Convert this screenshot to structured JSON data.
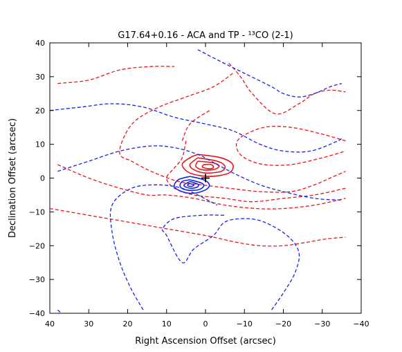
{
  "chart_data": {
    "type": "line",
    "title": "G17.64+0.16 - ACA and TP -  ¹³CO (2-1)",
    "xlabel": "Right Ascension Offset (arcsec)",
    "ylabel": "Declination Offset (arcsec)",
    "xlim": [
      40,
      -40
    ],
    "ylim": [
      -40,
      40
    ],
    "x_reversed": true,
    "grid": false,
    "legend": "none",
    "xticks": [
      {
        "value": 40,
        "label": "40"
      },
      {
        "value": 30,
        "label": "30"
      },
      {
        "value": 20,
        "label": "20"
      },
      {
        "value": 10,
        "label": "10"
      },
      {
        "value": 0,
        "label": "0"
      },
      {
        "value": -10,
        "label": "−10"
      },
      {
        "value": -20,
        "label": "−20"
      },
      {
        "value": -30,
        "label": "−30"
      },
      {
        "value": -40,
        "label": "−40"
      }
    ],
    "yticks": [
      {
        "value": 40,
        "label": "40"
      },
      {
        "value": 30,
        "label": "30"
      },
      {
        "value": 20,
        "label": "20"
      },
      {
        "value": 10,
        "label": "10"
      },
      {
        "value": 0,
        "label": "0"
      },
      {
        "value": -10,
        "label": "−10"
      },
      {
        "value": -20,
        "label": "−20"
      },
      {
        "value": -30,
        "label": "−30"
      },
      {
        "value": -40,
        "label": "−40"
      }
    ],
    "colors": {
      "red": "#e8141c",
      "blue": "#1424e6",
      "cross": "#000000"
    },
    "marker": {
      "shape": "cross",
      "x": 0,
      "y": 0
    },
    "series": [
      {
        "color": "red",
        "style": "dashed",
        "points": [
          [
            38,
            28
          ],
          [
            30,
            29
          ],
          [
            22,
            32
          ],
          [
            14,
            33
          ],
          [
            8,
            33
          ]
        ]
      },
      {
        "color": "red",
        "style": "dashed",
        "points": [
          [
            -6,
            34
          ],
          [
            -9,
            30
          ],
          [
            -12,
            25
          ],
          [
            -18,
            19
          ],
          [
            -24,
            22
          ],
          [
            -28,
            25
          ],
          [
            -32,
            26
          ],
          [
            -36,
            25.5
          ]
        ]
      },
      {
        "color": "red",
        "style": "dashed",
        "points": [
          [
            -7,
            31
          ],
          [
            -2,
            27
          ],
          [
            5,
            24
          ],
          [
            12,
            21
          ],
          [
            18,
            17
          ],
          [
            21,
            12
          ],
          [
            22,
            7
          ],
          [
            19,
            5
          ],
          [
            14,
            2
          ],
          [
            7,
            -1
          ],
          [
            1,
            -2
          ],
          [
            -6,
            -3
          ],
          [
            -14,
            -4
          ],
          [
            -22,
            -4
          ],
          [
            -28,
            -2
          ],
          [
            -32,
            0
          ],
          [
            -36,
            2
          ]
        ]
      },
      {
        "color": "red",
        "style": "dashed",
        "points": [
          [
            5,
            11
          ],
          [
            6,
            6
          ],
          [
            8,
            3
          ],
          [
            10,
            0
          ],
          [
            8,
            -3
          ],
          [
            3,
            -5
          ],
          [
            -5,
            -6
          ],
          [
            -12,
            -7
          ],
          [
            -20,
            -6
          ],
          [
            -28,
            -5
          ],
          [
            -36,
            -3
          ]
        ]
      },
      {
        "color": "red",
        "style": "dashed",
        "points": [
          [
            -36,
            11
          ],
          [
            -30,
            13
          ],
          [
            -22,
            15
          ],
          [
            -15,
            15
          ],
          [
            -9,
            12
          ],
          [
            -8,
            9
          ],
          [
            -10,
            6
          ],
          [
            -15,
            4
          ],
          [
            -22,
            4
          ],
          [
            -30,
            6
          ],
          [
            -36,
            8
          ]
        ]
      },
      {
        "color": "red",
        "style": "dashed",
        "points": [
          [
            -1,
            20
          ],
          [
            4,
            16
          ],
          [
            6,
            11
          ]
        ]
      },
      {
        "color": "red",
        "style": "dashed",
        "points": [
          [
            38,
            4
          ],
          [
            30,
            0
          ],
          [
            22,
            -3
          ],
          [
            15,
            -5
          ],
          [
            10,
            -5
          ],
          [
            3,
            -6
          ],
          [
            -5,
            -8
          ],
          [
            -13,
            -9
          ],
          [
            -20,
            -9
          ],
          [
            -28,
            -8
          ],
          [
            -36,
            -6
          ]
        ]
      },
      {
        "color": "red",
        "style": "dashed",
        "points": [
          [
            40,
            -9
          ],
          [
            30,
            -11
          ],
          [
            20,
            -13
          ],
          [
            10,
            -15
          ],
          [
            0,
            -17
          ],
          [
            -8,
            -19
          ],
          [
            -14,
            -20
          ],
          [
            -20,
            -20
          ],
          [
            -26,
            -19
          ],
          [
            -31,
            -18
          ],
          [
            -36,
            -17.5
          ]
        ]
      },
      {
        "color": "red",
        "style": "solid",
        "points": [
          [
            2,
            7
          ],
          [
            -4,
            6
          ],
          [
            -7,
            4
          ],
          [
            -6,
            1.5
          ],
          [
            -1,
            0.5
          ],
          [
            4,
            1.5
          ],
          [
            6,
            4
          ],
          [
            4,
            6
          ],
          [
            2,
            7
          ]
        ]
      },
      {
        "color": "red",
        "style": "solid",
        "points": [
          [
            2,
            6
          ],
          [
            -3,
            5
          ],
          [
            -5,
            3.5
          ],
          [
            -4,
            2
          ],
          [
            0,
            1.5
          ],
          [
            3,
            2.5
          ],
          [
            4,
            4
          ],
          [
            2,
            6
          ]
        ]
      },
      {
        "color": "red",
        "style": "solid",
        "points": [
          [
            2,
            5
          ],
          [
            -2,
            4.5
          ],
          [
            -3.5,
            3.5
          ],
          [
            -2,
            2.5
          ],
          [
            1,
            2.5
          ],
          [
            2.5,
            3.5
          ],
          [
            2,
            5
          ]
        ]
      },
      {
        "color": "red",
        "style": "solid",
        "points": [
          [
            0.5,
            4
          ],
          [
            -1.5,
            4
          ],
          [
            -2,
            3
          ],
          [
            -0.5,
            2.8
          ],
          [
            0.8,
            3.3
          ],
          [
            0.5,
            4
          ]
        ]
      },
      {
        "color": "blue",
        "style": "dashed",
        "points": [
          [
            2,
            38
          ],
          [
            -3,
            35
          ],
          [
            -10,
            31
          ],
          [
            -17,
            27
          ],
          [
            -20,
            25
          ],
          [
            -24,
            24
          ],
          [
            -28,
            25
          ],
          [
            -32,
            27
          ],
          [
            -35,
            28
          ]
        ]
      },
      {
        "color": "blue",
        "style": "dashed",
        "points": [
          [
            40,
            20
          ],
          [
            32,
            21
          ],
          [
            24,
            22
          ],
          [
            16,
            21
          ],
          [
            8,
            18
          ],
          [
            0,
            16
          ],
          [
            -7,
            14
          ],
          [
            -14,
            10
          ],
          [
            -20,
            8
          ],
          [
            -27,
            8
          ],
          [
            -34,
            11
          ],
          [
            -35,
            12
          ]
        ]
      },
      {
        "color": "blue",
        "style": "dashed",
        "points": [
          [
            38,
            2
          ],
          [
            30,
            5
          ],
          [
            22,
            8
          ],
          [
            14,
            9.5
          ],
          [
            8,
            9
          ],
          [
            2,
            7
          ],
          [
            -3,
            4
          ],
          [
            -8,
            1
          ],
          [
            -14,
            -2
          ],
          [
            -20,
            -4
          ],
          [
            -28,
            -6
          ],
          [
            -35,
            -6.5
          ]
        ]
      },
      {
        "color": "blue",
        "style": "dashed",
        "points": [
          [
            16,
            -39
          ],
          [
            19,
            -33
          ],
          [
            22,
            -25
          ],
          [
            24,
            -16
          ],
          [
            24,
            -8
          ],
          [
            19,
            -3
          ],
          [
            12,
            -2
          ],
          [
            6,
            -3
          ],
          [
            2,
            -5
          ],
          [
            -3,
            -8
          ]
        ]
      },
      {
        "color": "blue",
        "style": "dashed",
        "points": [
          [
            38,
            -39
          ],
          [
            37,
            -40
          ]
        ]
      },
      {
        "color": "blue",
        "style": "dashed",
        "points": [
          [
            -17,
            -39
          ],
          [
            -20,
            -34
          ],
          [
            -23,
            -28
          ],
          [
            -24,
            -22
          ],
          [
            -21,
            -17
          ],
          [
            -15,
            -13
          ],
          [
            -10,
            -12
          ],
          [
            -5,
            -13
          ],
          [
            -2,
            -17
          ],
          [
            3,
            -21
          ],
          [
            6,
            -25
          ],
          [
            10,
            -17
          ],
          [
            11,
            -15
          ],
          [
            8,
            -12
          ],
          [
            1,
            -11
          ],
          [
            -5,
            -11
          ]
        ]
      },
      {
        "color": "blue",
        "style": "solid",
        "points": [
          [
            4,
            0.5
          ],
          [
            0.5,
            -0.5
          ],
          [
            -1,
            -2
          ],
          [
            0,
            -3.5
          ],
          [
            3,
            -4.5
          ],
          [
            6,
            -4
          ],
          [
            8,
            -2.5
          ],
          [
            7,
            -0.5
          ],
          [
            4,
            0.5
          ]
        ]
      },
      {
        "color": "blue",
        "style": "solid",
        "points": [
          [
            4,
            -0.5
          ],
          [
            1,
            -1.5
          ],
          [
            0.5,
            -2.5
          ],
          [
            2,
            -3.5
          ],
          [
            5,
            -3.5
          ],
          [
            6.5,
            -2.5
          ],
          [
            6,
            -1
          ],
          [
            4,
            -0.5
          ]
        ]
      },
      {
        "color": "blue",
        "style": "solid",
        "points": [
          [
            4,
            -1
          ],
          [
            2,
            -1.8
          ],
          [
            2,
            -2.6
          ],
          [
            3.5,
            -3
          ],
          [
            5,
            -2.7
          ],
          [
            5.5,
            -2
          ],
          [
            4,
            -1
          ]
        ]
      },
      {
        "color": "blue",
        "style": "solid",
        "points": [
          [
            4,
            -1.6
          ],
          [
            3,
            -2
          ],
          [
            3.4,
            -2.4
          ],
          [
            4.3,
            -2.4
          ],
          [
            4.6,
            -2
          ],
          [
            4,
            -1.6
          ]
        ]
      }
    ]
  }
}
